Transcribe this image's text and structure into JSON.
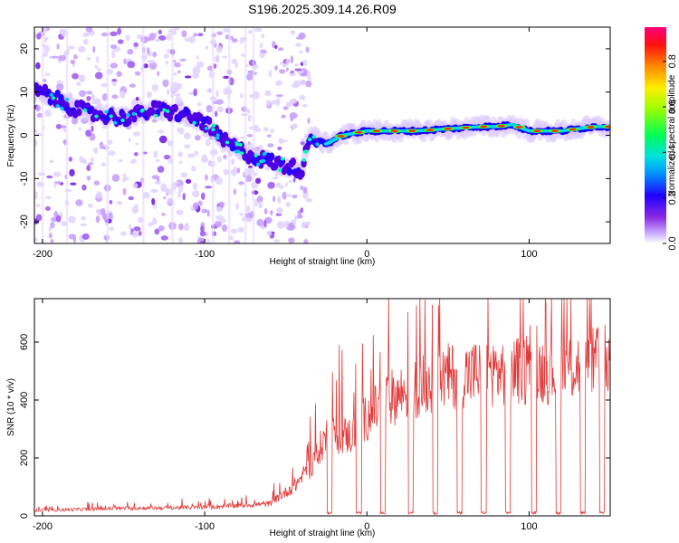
{
  "figure_title": "S196.2025.309.14.26.R09",
  "chart_data": [
    {
      "type": "heatmap",
      "name": "spectrogram",
      "xlabel": "Height of straight line (km)",
      "ylabel": "Frequency (Hz)",
      "xlim": [
        -205,
        150
      ],
      "ylim": [
        -25,
        25
      ],
      "xticks": [
        -200,
        -100,
        0,
        100
      ],
      "yticks": [
        -20,
        -10,
        0,
        10,
        20
      ],
      "colorbar": {
        "label": "Normalized spectral amplitude",
        "range": [
          0,
          0.95
        ],
        "ticks": [
          "0.0",
          "0.2",
          "0.4",
          "0.6",
          "0.8"
        ],
        "tick_values": [
          0.0,
          0.2,
          0.4,
          0.6,
          0.8
        ],
        "colors": [
          "#ffffff",
          "#c8a8ff",
          "#8a2be2",
          "#5a00e0",
          "#0000ff",
          "#00aaff",
          "#00e5e5",
          "#00ff66",
          "#66ff00",
          "#ffff00",
          "#ffa500",
          "#ff0000",
          "#ff0080"
        ]
      },
      "ridge": {
        "x": [
          -200,
          -185,
          -170,
          -150,
          -130,
          -115,
          -100,
          -90,
          -80,
          -70,
          -60,
          -50,
          -40,
          -35,
          -25,
          -15,
          0,
          10,
          30,
          50,
          70,
          80,
          90,
          100,
          120,
          140,
          150
        ],
        "y": [
          10,
          7,
          5,
          4,
          6,
          5,
          3,
          -1,
          -3,
          -5,
          -6,
          -7,
          -8,
          0,
          -2,
          0,
          1,
          1,
          1,
          1.5,
          2,
          2,
          2.5,
          1,
          1,
          2,
          2
        ]
      }
    },
    {
      "type": "line",
      "name": "snr",
      "xlabel": "Height of straight line (km)",
      "ylabel": "SNR (10 * v/v)",
      "xlim": [
        -205,
        150
      ],
      "ylim": [
        0,
        750
      ],
      "xticks": [
        -200,
        -100,
        0,
        100
      ],
      "yticks": [
        0,
        200,
        400,
        600
      ],
      "color": "#e23a3a",
      "envelope": {
        "x": [
          -205,
          -150,
          -100,
          -60,
          -45,
          -35,
          -25,
          -10,
          0,
          15,
          30,
          50,
          70,
          90,
          110,
          130,
          150
        ],
        "y": [
          20,
          28,
          32,
          45,
          110,
          180,
          300,
          300,
          370,
          440,
          480,
          520,
          535,
          540,
          545,
          560,
          580
        ]
      },
      "dropouts_x": [
        -23,
        -5,
        10,
        27,
        42,
        57,
        72,
        87,
        103,
        118,
        133,
        145
      ]
    }
  ]
}
